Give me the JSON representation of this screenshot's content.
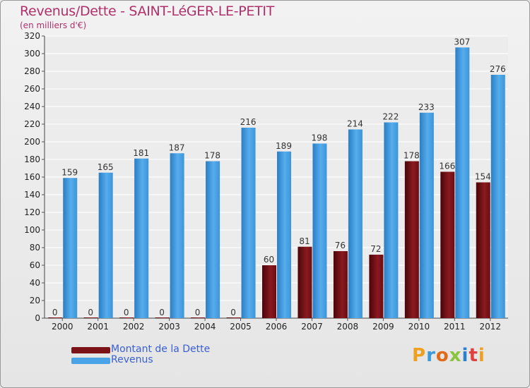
{
  "header": {
    "title": "Revenus/Dette - SAINT-LéGER-LE-PETIT",
    "subtitle": "(en milliers d'€)"
  },
  "legend": {
    "items": [
      {
        "label": "Montant de la Dette",
        "color": "#7a1218"
      },
      {
        "label": "Revenus",
        "color": "#4aa3e6"
      }
    ]
  },
  "logo": {
    "text": "Proxiti"
  },
  "chart_data": {
    "type": "bar",
    "title": "Revenus/Dette - SAINT-LéGER-LE-PETIT",
    "ylabel": "(en milliers d'€)",
    "xlabel": "",
    "ylim": [
      0,
      320
    ],
    "ytick_step": 20,
    "grid": true,
    "legend_position": "bottom-left",
    "categories": [
      "2000",
      "2001",
      "2002",
      "2003",
      "2004",
      "2005",
      "2006",
      "2007",
      "2008",
      "2009",
      "2010",
      "2011",
      "2012"
    ],
    "series": [
      {
        "name": "Montant de la Dette",
        "color": "#7a1218",
        "values": [
          0,
          0,
          0,
          0,
          0,
          0,
          60,
          81,
          76,
          72,
          178,
          166,
          154
        ]
      },
      {
        "name": "Revenus",
        "color": "#4aa3e6",
        "values": [
          159,
          165,
          181,
          187,
          178,
          216,
          189,
          198,
          214,
          222,
          233,
          307,
          276
        ]
      }
    ]
  }
}
